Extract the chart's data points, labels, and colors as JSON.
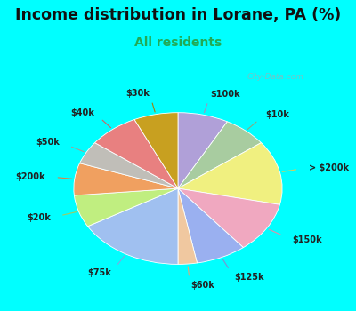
{
  "title": "Income distribution in Lorane, PA (%)",
  "subtitle": "All residents",
  "title_color": "#111111",
  "subtitle_color": "#22aa55",
  "background_color": "#00ffff",
  "chart_bg_top": "#d0f0e8",
  "chart_bg_bottom": "#e8f8e0",
  "watermark": "City-Data.com",
  "labels": [
    "$100k",
    "$10k",
    "> $200k",
    "$150k",
    "$125k",
    "$60k",
    "$75k",
    "$20k",
    "$200k",
    "$50k",
    "$40k",
    "$30k"
  ],
  "values": [
    8,
    7,
    14,
    11,
    8,
    3,
    17,
    7,
    7,
    5,
    8,
    7
  ],
  "colors": [
    "#b0a0d8",
    "#a8cca0",
    "#f0f080",
    "#f0a8c0",
    "#9ab0f0",
    "#f0c8a0",
    "#a0c0f0",
    "#c0ee80",
    "#f0a060",
    "#c0beb8",
    "#e88080",
    "#c8a020"
  ],
  "line_colors": [
    "#a090c0",
    "#88aa80",
    "#d0d060",
    "#e090a8",
    "#8090d0",
    "#e0a878",
    "#80a8e0",
    "#a0cc60",
    "#e08040",
    "#a0a098",
    "#d06060",
    "#a08010"
  ]
}
